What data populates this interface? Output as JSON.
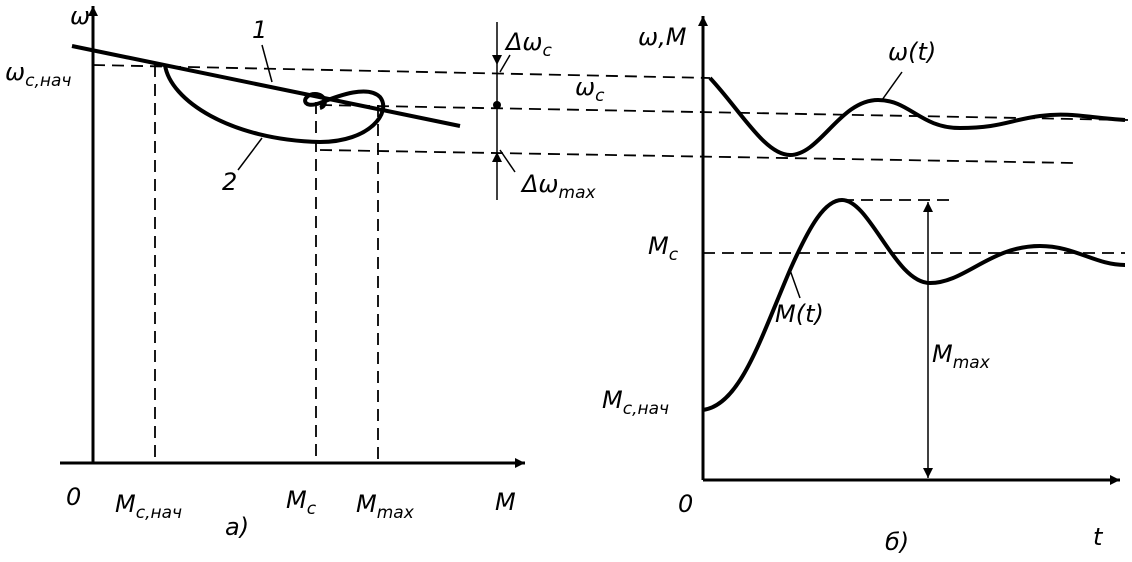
{
  "panel_a": {
    "y_axis": "ω",
    "x_axis": "M",
    "origin": "0",
    "caption": "а)",
    "omega_start": {
      "base": "ω",
      "sub": "с,нач"
    },
    "curve_labels": [
      "1",
      "2"
    ],
    "x_labels": [
      {
        "base": "M",
        "sub": "с,нач"
      },
      {
        "base": "M",
        "sub": "с"
      },
      {
        "base": "M",
        "sub": "max"
      }
    ]
  },
  "deviations": {
    "delta_c": {
      "base": "Δω",
      "sub": "с"
    },
    "omega_c": {
      "base": "ω",
      "sub": "с"
    },
    "delta_max": {
      "base": "Δω",
      "sub": "max"
    }
  },
  "panel_b": {
    "y_axis": "ω,M",
    "x_axis": "t",
    "origin": "0",
    "caption": "б)",
    "curve_labels": [
      "ω(t)",
      "M(t)"
    ],
    "m_c": {
      "base": "M",
      "sub": "с"
    },
    "m_start": {
      "base": "M",
      "sub": "с,нач"
    },
    "m_max": {
      "base": "M",
      "sub": "max"
    }
  }
}
